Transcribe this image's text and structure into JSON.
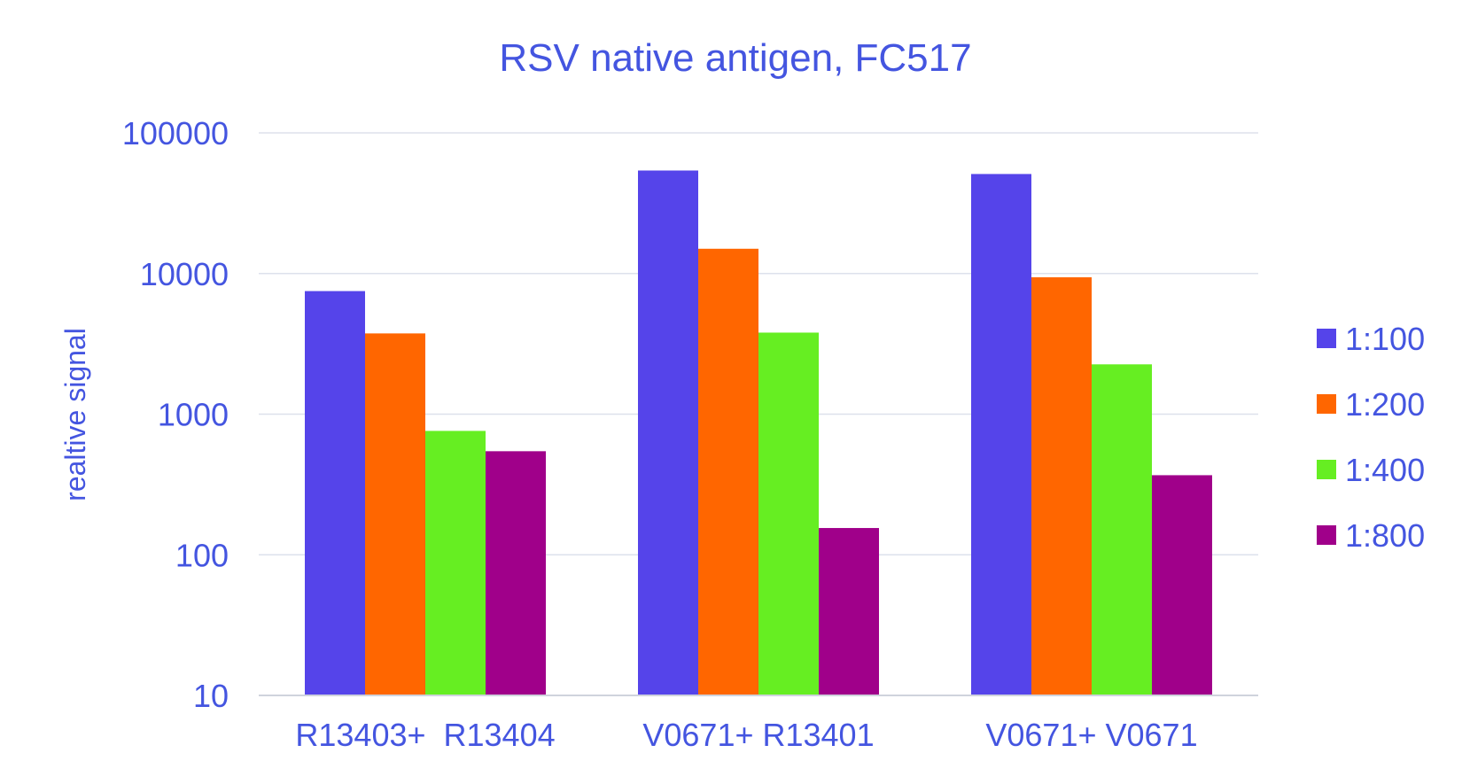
{
  "chart_data": {
    "type": "bar",
    "title": "RSV native antigen, FC517",
    "xlabel": "",
    "ylabel": "realtive signal",
    "y_scale": "log",
    "ylim": [
      10,
      100000
    ],
    "y_ticks": [
      "10",
      "100",
      "1000",
      "10000",
      "100000"
    ],
    "grid": true,
    "legend_position": "right",
    "categories": [
      "R13403+  R13404",
      "V0671+ R13401",
      "V0671+ V0671"
    ],
    "series": [
      {
        "name": "1:100",
        "color": "#5544ea",
        "values": [
          7500,
          54000,
          51000
        ]
      },
      {
        "name": "1:200",
        "color": "#ff6600",
        "values": [
          3750,
          15000,
          9400
        ]
      },
      {
        "name": "1:400",
        "color": "#66ee22",
        "values": [
          760,
          3800,
          2260
        ]
      },
      {
        "name": "1:800",
        "color": "#a0008a",
        "values": [
          545,
          155,
          368
        ]
      }
    ],
    "text_color": "#4455e0",
    "grid_color": "#dde1ec"
  }
}
